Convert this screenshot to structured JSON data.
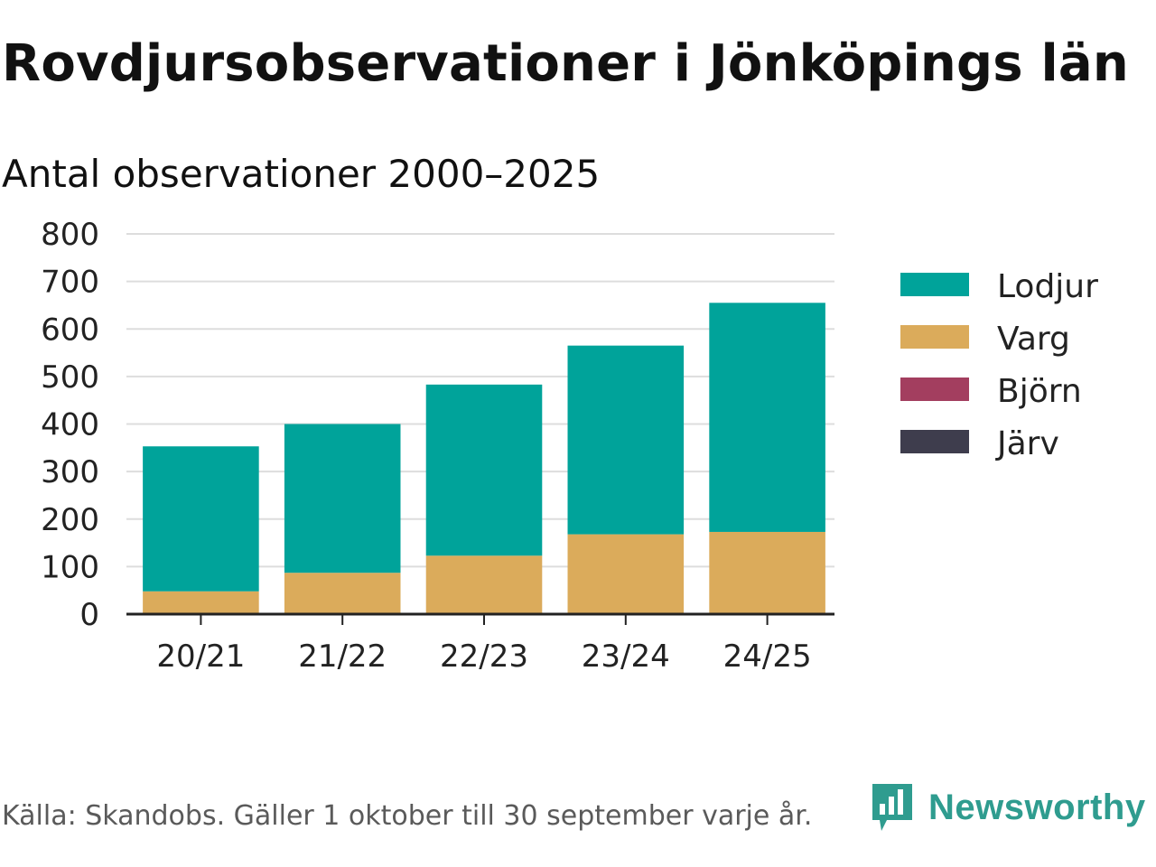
{
  "title": "Rovdjursobservationer i Jönköpings län",
  "subtitle": "Antal observationer 2000–2025",
  "source": "Källa: Skandobs. Gäller 1 oktober till 30 september varje år.",
  "brand": {
    "name": "Newsworthy",
    "icon": "newsworthy-logo-icon",
    "color": "#2f9c8f"
  },
  "chart_data": {
    "type": "bar",
    "stacked": true,
    "title": "Antal observationer 2000–2025",
    "xlabel": "",
    "ylabel": "",
    "ylim": [
      0,
      800
    ],
    "yticks": [
      0,
      100,
      200,
      300,
      400,
      500,
      600,
      700,
      800
    ],
    "grid": true,
    "legend_position": "right",
    "categories": [
      "20/21",
      "21/22",
      "22/23",
      "23/24",
      "24/25"
    ],
    "series": [
      {
        "name": "Lodjur",
        "color": "#00a39a",
        "values": [
          305,
          313,
          360,
          397,
          482
        ]
      },
      {
        "name": "Varg",
        "color": "#dbab5b",
        "values": [
          48,
          87,
          123,
          168,
          173
        ]
      },
      {
        "name": "Björn",
        "color": "#a33e5f",
        "values": [
          0,
          0,
          0,
          0,
          0
        ]
      },
      {
        "name": "Järv",
        "color": "#3e3d4d",
        "values": [
          0,
          0,
          0,
          0,
          0
        ]
      }
    ]
  }
}
